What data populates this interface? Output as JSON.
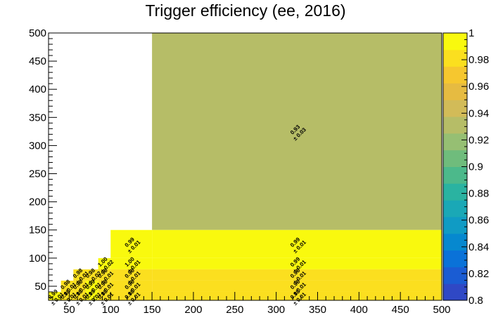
{
  "chart_data": {
    "type": "heatmap",
    "title": "Trigger efficiency (ee, 2016)",
    "xlabel": "",
    "ylabel": "",
    "xlim": [
      25,
      500
    ],
    "ylim": [
      25,
      500
    ],
    "x_ticks": [
      50,
      100,
      150,
      200,
      250,
      300,
      350,
      400,
      450,
      500
    ],
    "y_ticks": [
      50,
      100,
      150,
      200,
      250,
      300,
      350,
      400,
      450,
      500
    ],
    "z_range": [
      0.8,
      1.0
    ],
    "z_ticks": [
      0.8,
      0.82,
      0.84,
      0.86,
      0.88,
      0.9,
      0.92,
      0.94,
      0.96,
      0.98,
      1
    ],
    "grid": false,
    "colorbar": "right",
    "cells": [
      {
        "x": [
          150,
          500
        ],
        "y": [
          150,
          500
        ],
        "value": 0.93,
        "error": 0.03,
        "label": "0.93",
        "err_label": "± 0.03"
      },
      {
        "x": [
          100,
          150
        ],
        "y": [
          100,
          150
        ],
        "value": 0.99,
        "error": 0.01,
        "label": "0.99",
        "err_label": "± 0.01"
      },
      {
        "x": [
          150,
          500
        ],
        "y": [
          100,
          150
        ],
        "value": 0.99,
        "error": 0.01,
        "label": "0.99",
        "err_label": "± 0.01"
      },
      {
        "x": [
          85,
          100
        ],
        "y": [
          80,
          100
        ],
        "value": 1.0,
        "error": 0.02,
        "label": "1.00",
        "err_label": "± 0.02"
      },
      {
        "x": [
          100,
          150
        ],
        "y": [
          80,
          100
        ],
        "value": 1.0,
        "error": 0.01,
        "label": "1.00",
        "err_label": "± 0.01"
      },
      {
        "x": [
          150,
          500
        ],
        "y": [
          80,
          100
        ],
        "value": 0.99,
        "error": 0.01,
        "label": "0.99",
        "err_label": "± 0.01"
      },
      {
        "x": [
          55,
          70
        ],
        "y": [
          60,
          80
        ],
        "value": 0.98,
        "error": 0.01,
        "label": "0.98",
        "err_label": "± 0.01"
      },
      {
        "x": [
          70,
          85
        ],
        "y": [
          60,
          80
        ],
        "value": 0.98,
        "error": 0.02,
        "label": "0.98",
        "err_label": "± 0.02"
      },
      {
        "x": [
          85,
          100
        ],
        "y": [
          60,
          80
        ],
        "value": 0.98,
        "error": 0.01,
        "label": "0.98",
        "err_label": "± 0.01"
      },
      {
        "x": [
          100,
          150
        ],
        "y": [
          60,
          80
        ],
        "value": 0.98,
        "error": 0.01,
        "label": "0.98",
        "err_label": "± 0.01"
      },
      {
        "x": [
          150,
          500
        ],
        "y": [
          60,
          80
        ],
        "value": 0.98,
        "error": 0.01,
        "label": "0.98",
        "err_label": "± 0.01"
      },
      {
        "x": [
          40,
          55
        ],
        "y": [
          40,
          60
        ],
        "value": 0.98,
        "error": 0.01,
        "label": "0.98",
        "err_label": "± 0.01"
      },
      {
        "x": [
          55,
          70
        ],
        "y": [
          40,
          60
        ],
        "value": 0.98,
        "error": 0.01,
        "label": "0.98",
        "err_label": "± 0.01"
      },
      {
        "x": [
          70,
          85
        ],
        "y": [
          40,
          60
        ],
        "value": 0.99,
        "error": 0.01,
        "label": "0.99",
        "err_label": "± 0.01"
      },
      {
        "x": [
          85,
          100
        ],
        "y": [
          40,
          60
        ],
        "value": 0.98,
        "error": 0.01,
        "label": "0.98",
        "err_label": "± 0.01"
      },
      {
        "x": [
          100,
          150
        ],
        "y": [
          40,
          60
        ],
        "value": 0.98,
        "error": 0.01,
        "label": "0.98",
        "err_label": "± 0.01"
      },
      {
        "x": [
          150,
          500
        ],
        "y": [
          40,
          60
        ],
        "value": 0.98,
        "error": 0.01,
        "label": "0.98",
        "err_label": "± 0.01"
      },
      {
        "x": [
          25,
          40
        ],
        "y": [
          25,
          40
        ],
        "value": 0.99,
        "error": 0.01,
        "label": "0.99",
        "err_label": "± 0.01"
      },
      {
        "x": [
          40,
          55
        ],
        "y": [
          25,
          40
        ],
        "value": 0.98,
        "error": 0.01,
        "label": "0.98",
        "err_label": "± 0.01"
      },
      {
        "x": [
          55,
          70
        ],
        "y": [
          25,
          40
        ],
        "value": 0.98,
        "error": 0.01,
        "label": "0.98",
        "err_label": "± 0.01"
      },
      {
        "x": [
          70,
          85
        ],
        "y": [
          25,
          40
        ],
        "value": 0.99,
        "error": 0.01,
        "label": "0.99",
        "err_label": "± 0.01"
      },
      {
        "x": [
          85,
          100
        ],
        "y": [
          25,
          40
        ],
        "value": 0.98,
        "error": 0.01,
        "label": "0.98",
        "err_label": "± 0.01"
      },
      {
        "x": [
          100,
          150
        ],
        "y": [
          25,
          40
        ],
        "value": 0.98,
        "error": 0.01,
        "label": "0.98",
        "err_label": "± 0.01"
      },
      {
        "x": [
          150,
          500
        ],
        "y": [
          25,
          40
        ],
        "value": 0.98,
        "error": 0.01,
        "label": "0.98",
        "err_label": "± 0.01"
      }
    ]
  },
  "colors": {
    "palette": [
      "#2f48c5",
      "#1a5cd3",
      "#0a72d8",
      "#0688cf",
      "#109bc4",
      "#1aa8b6",
      "#2ab3a1",
      "#4cb98b",
      "#6fbc7c",
      "#96bf73",
      "#b6bd67",
      "#d2bb58",
      "#e6bb41",
      "#f6c72f",
      "#fbdf1f",
      "#f9f90e"
    ],
    "background": "#ffffff",
    "axis": "#000000"
  }
}
